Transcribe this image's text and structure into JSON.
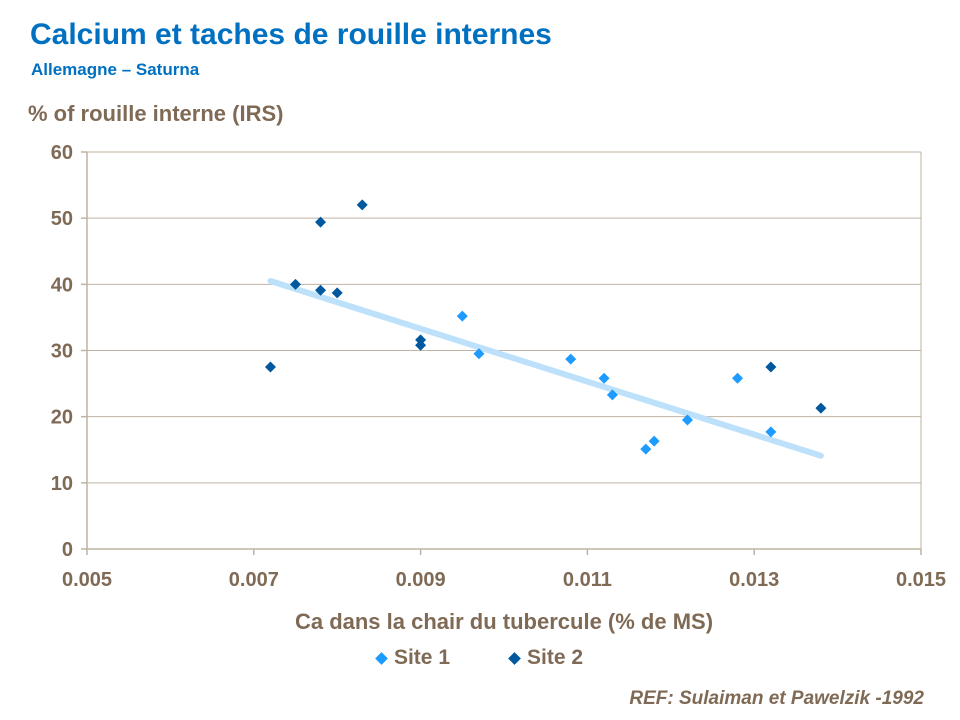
{
  "chart_data": {
    "type": "scatter",
    "title": "Calcium et taches de rouille internes",
    "subtitle": "Allemagne – Saturna",
    "xlabel": "Ca dans la chair du tubercule (% de MS)",
    "ylabel": "% of rouille interne (IRS)",
    "xlim": [
      0.005,
      0.015
    ],
    "ylim": [
      0,
      60
    ],
    "xticks": [
      "0.005",
      "0.007",
      "0.009",
      "0.011",
      "0.013",
      "0.015"
    ],
    "xtick_values": [
      0.005,
      0.007,
      0.009,
      0.011,
      0.013,
      0.015
    ],
    "yticks": [
      "0",
      "10",
      "20",
      "30",
      "40",
      "50",
      "60"
    ],
    "ytick_values": [
      0,
      10,
      20,
      30,
      40,
      50,
      60
    ],
    "grid": "horizontal",
    "legend_position": "bottom",
    "series": [
      {
        "name": "Site 1",
        "color": "#1E9BFF",
        "marker": "diamond",
        "points": [
          [
            0.0095,
            35.2
          ],
          [
            0.0097,
            29.5
          ],
          [
            0.0108,
            28.7
          ],
          [
            0.0112,
            25.8
          ],
          [
            0.0113,
            23.3
          ],
          [
            0.0117,
            15.1
          ],
          [
            0.0118,
            16.3
          ],
          [
            0.0122,
            19.5
          ],
          [
            0.0128,
            25.8
          ],
          [
            0.0132,
            17.7
          ]
        ]
      },
      {
        "name": "Site 2",
        "color": "#00589E",
        "marker": "diamond",
        "points": [
          [
            0.0072,
            27.5
          ],
          [
            0.0075,
            40.0
          ],
          [
            0.0078,
            49.4
          ],
          [
            0.0078,
            39.1
          ],
          [
            0.008,
            38.7
          ],
          [
            0.0083,
            52.0
          ],
          [
            0.009,
            31.6
          ],
          [
            0.009,
            30.8
          ],
          [
            0.0132,
            27.5
          ],
          [
            0.0138,
            21.3
          ]
        ]
      }
    ],
    "trendline": {
      "color": "#BDE1FA",
      "points": [
        [
          0.0072,
          40.5
        ],
        [
          0.0138,
          14.1
        ]
      ]
    }
  },
  "reference": "REF: Sulaiman et Pawelzik -1992",
  "colors": {
    "title": "#0070C0",
    "axis_text": "#7F6A55",
    "grid": "#BFB3A3"
  }
}
